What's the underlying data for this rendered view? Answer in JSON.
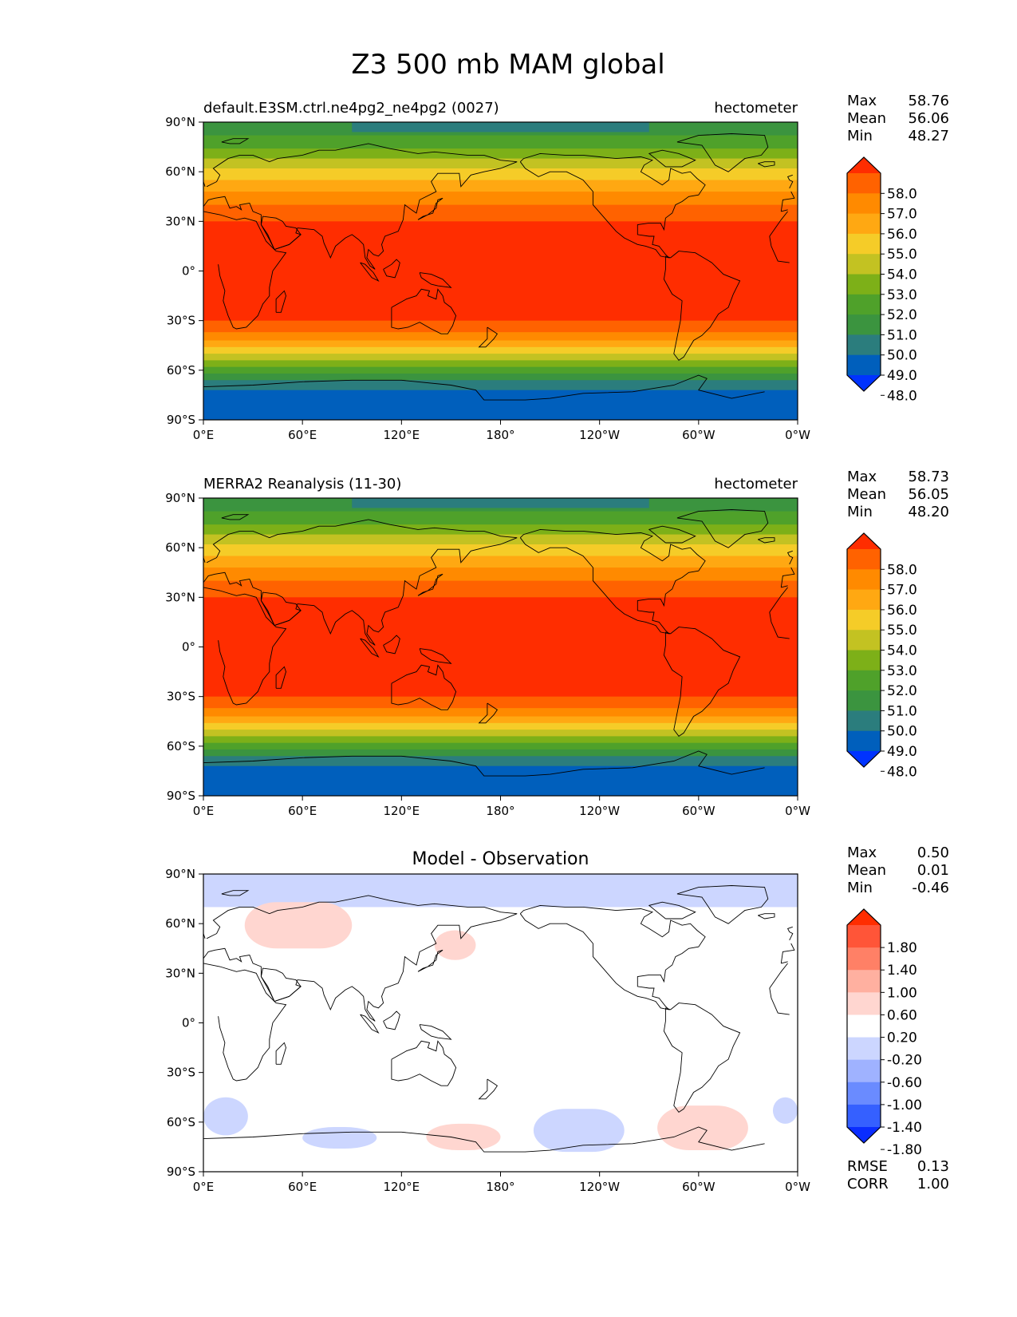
{
  "figure_title": "Z3 500 mb MAM global",
  "colors": {
    "main_levels": [
      "#0033ff",
      "#005fbc",
      "#2b7d7d",
      "#3b943f",
      "#4fa12a",
      "#7db018",
      "#c3c222",
      "#f5cc28",
      "#ffa812",
      "#ff8a00",
      "#ff6200",
      "#ff2d00"
    ],
    "diff_levels": [
      "#0a2dff",
      "#3560ff",
      "#6a8bff",
      "#9fb2ff",
      "#ccd6ff",
      "#ffffff",
      "#ffd6d0",
      "#ffb0a0",
      "#ff8066",
      "#ff5538",
      "#ff2d00"
    ],
    "coast": "#000000"
  },
  "x_ticks": [
    "0°E",
    "60°E",
    "120°E",
    "180°",
    "120°W",
    "60°W",
    "0°W"
  ],
  "y_ticks": [
    "90°N",
    "60°N",
    "30°N",
    "0°",
    "30°S",
    "60°S",
    "90°S"
  ],
  "chart_data": [
    {
      "type": "heatmap",
      "title": "default.E3SM.ctrl.ne4pg2_ne4pg2 (0027)",
      "units": "hectometer",
      "projection": "cylindrical equidistant",
      "xlim": [
        0,
        360
      ],
      "ylim": [
        -90,
        90
      ],
      "stats": [
        {
          "label": "Max",
          "value": "58.76"
        },
        {
          "label": "Mean",
          "value": "56.06"
        },
        {
          "label": "Min",
          "value": "48.27"
        }
      ],
      "colorbar": {
        "extend": "both",
        "ticks": [
          "58.0",
          "57.0",
          "56.0",
          "55.0",
          "54.0",
          "53.0",
          "52.0",
          "51.0",
          "50.0",
          "49.0",
          "48.0"
        ]
      }
    },
    {
      "type": "heatmap",
      "title": "MERRA2 Reanalysis (11-30)",
      "units": "hectometer",
      "projection": "cylindrical equidistant",
      "xlim": [
        0,
        360
      ],
      "ylim": [
        -90,
        90
      ],
      "stats": [
        {
          "label": "Max",
          "value": "58.73"
        },
        {
          "label": "Mean",
          "value": "56.05"
        },
        {
          "label": "Min",
          "value": "48.20"
        }
      ],
      "colorbar": {
        "extend": "both",
        "ticks": [
          "58.0",
          "57.0",
          "56.0",
          "55.0",
          "54.0",
          "53.0",
          "52.0",
          "51.0",
          "50.0",
          "49.0",
          "48.0"
        ]
      }
    },
    {
      "type": "heatmap",
      "title": "Model - Observation",
      "units": "",
      "projection": "cylindrical equidistant",
      "xlim": [
        0,
        360
      ],
      "ylim": [
        -90,
        90
      ],
      "stats": [
        {
          "label": "Max",
          "value": "0.50"
        },
        {
          "label": "Mean",
          "value": "0.01"
        },
        {
          "label": "Min",
          "value": "-0.46"
        }
      ],
      "colorbar": {
        "extend": "both",
        "ticks": [
          "1.80",
          "1.40",
          "1.00",
          "0.60",
          "0.20",
          "-0.20",
          "-0.60",
          "-1.00",
          "-1.40",
          "-1.80"
        ]
      },
      "extra_stats": [
        {
          "label": "RMSE",
          "value": "0.13"
        },
        {
          "label": "CORR",
          "value": "1.00"
        }
      ],
      "anomalies": [
        {
          "sign": "negative",
          "lon": [
            0,
            360
          ],
          "lat": [
            70,
            90
          ]
        },
        {
          "sign": "positive",
          "lon": [
            25,
            90
          ],
          "lat": [
            45,
            73
          ]
        },
        {
          "sign": "positive",
          "lon": [
            140,
            165
          ],
          "lat": [
            38,
            56
          ]
        },
        {
          "sign": "negative",
          "lon": [
            0,
            27
          ],
          "lat": [
            -68,
            -45
          ]
        },
        {
          "sign": "negative",
          "lon": [
            60,
            105
          ],
          "lat": [
            -76,
            -63
          ]
        },
        {
          "sign": "positive",
          "lon": [
            135,
            180
          ],
          "lat": [
            -77,
            -61
          ]
        },
        {
          "sign": "negative",
          "lon": [
            200,
            255
          ],
          "lat": [
            -78,
            -52
          ]
        },
        {
          "sign": "positive",
          "lon": [
            275,
            330
          ],
          "lat": [
            -77,
            -50
          ]
        },
        {
          "sign": "negative",
          "lon": [
            345,
            360
          ],
          "lat": [
            -61,
            -45
          ]
        }
      ]
    }
  ]
}
